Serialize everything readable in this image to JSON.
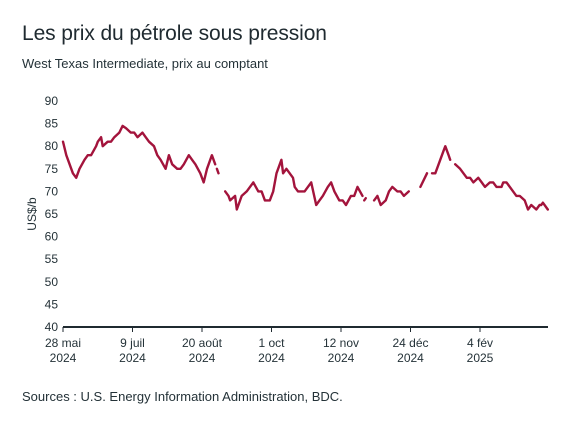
{
  "chart_data": {
    "type": "line",
    "title": "Les prix du pétrole sous pression",
    "subtitle": "West Texas Intermediate, prix au comptant",
    "ylabel": "US$/b",
    "ylim": [
      40,
      90
    ],
    "yticks": [
      40,
      45,
      50,
      55,
      60,
      65,
      70,
      75,
      80,
      85,
      90
    ],
    "xticks": [
      {
        "line1": "28 mai",
        "line2": "2024",
        "date": "2024-05-28"
      },
      {
        "line1": "9 juil",
        "line2": "2024",
        "date": "2024-07-09"
      },
      {
        "line1": "20 août",
        "line2": "2024",
        "date": "2024-08-20"
      },
      {
        "line1": "1 oct",
        "line2": "2024",
        "date": "2024-10-01"
      },
      {
        "line1": "12 nov",
        "line2": "2024",
        "date": "2024-11-12"
      },
      {
        "line1": "24 déc",
        "line2": "2024",
        "date": "2024-12-24"
      },
      {
        "line1": "4 fév",
        "line2": "2025",
        "date": "2025-02-04"
      }
    ],
    "xrange": [
      "2024-05-28",
      "2025-03-17"
    ],
    "line_color": "#a3143c",
    "series": [
      {
        "name": "",
        "segments": [
          [
            [
              "2024-05-28",
              81
            ],
            [
              "2024-05-30",
              78
            ],
            [
              "2024-06-03",
              74
            ],
            [
              "2024-06-05",
              73
            ],
            [
              "2024-06-07",
              75
            ],
            [
              "2024-06-10",
              77
            ],
            [
              "2024-06-12",
              78
            ],
            [
              "2024-06-14",
              78
            ],
            [
              "2024-06-17",
              80
            ],
            [
              "2024-06-18",
              81
            ],
            [
              "2024-06-20",
              82
            ],
            [
              "2024-06-21",
              80
            ],
            [
              "2024-06-24",
              81
            ],
            [
              "2024-06-26",
              81
            ],
            [
              "2024-06-28",
              82
            ],
            [
              "2024-07-01",
              83
            ],
            [
              "2024-07-03",
              84.5
            ],
            [
              "2024-07-05",
              84
            ],
            [
              "2024-07-08",
              83
            ],
            [
              "2024-07-10",
              83
            ],
            [
              "2024-07-12",
              82
            ],
            [
              "2024-07-15",
              83
            ],
            [
              "2024-07-17",
              82
            ],
            [
              "2024-07-19",
              81
            ],
            [
              "2024-07-22",
              80
            ],
            [
              "2024-07-24",
              78
            ],
            [
              "2024-07-26",
              77
            ],
            [
              "2024-07-29",
              75
            ],
            [
              "2024-07-31",
              78
            ],
            [
              "2024-08-02",
              76
            ],
            [
              "2024-08-05",
              75
            ],
            [
              "2024-08-07",
              75
            ],
            [
              "2024-08-09",
              76
            ],
            [
              "2024-08-12",
              78
            ],
            [
              "2024-08-14",
              77
            ],
            [
              "2024-08-16",
              76
            ],
            [
              "2024-08-19",
              74
            ],
            [
              "2024-08-21",
              72
            ],
            [
              "2024-08-23",
              75
            ],
            [
              "2024-08-26",
              78
            ],
            [
              "2024-08-28",
              76
            ]
          ],
          [
            [
              "2024-08-29",
              75
            ],
            [
              "2024-08-30",
              74
            ]
          ],
          [
            [
              "2024-09-03",
              70
            ],
            [
              "2024-09-05",
              69
            ],
            [
              "2024-09-06",
              68
            ],
            [
              "2024-09-09",
              69
            ],
            [
              "2024-09-10",
              66
            ],
            [
              "2024-09-12",
              68
            ],
            [
              "2024-09-13",
              69
            ],
            [
              "2024-09-16",
              70
            ],
            [
              "2024-09-18",
              71
            ],
            [
              "2024-09-20",
              72
            ],
            [
              "2024-09-23",
              70
            ],
            [
              "2024-09-25",
              70
            ],
            [
              "2024-09-27",
              68
            ],
            [
              "2024-09-30",
              68
            ],
            [
              "2024-10-02",
              70
            ],
            [
              "2024-10-04",
              74
            ],
            [
              "2024-10-07",
              77
            ],
            [
              "2024-10-08",
              74
            ],
            [
              "2024-10-10",
              75
            ],
            [
              "2024-10-14",
              73
            ],
            [
              "2024-10-15",
              71
            ],
            [
              "2024-10-17",
              70
            ],
            [
              "2024-10-21",
              70
            ],
            [
              "2024-10-23",
              71
            ],
            [
              "2024-10-25",
              72
            ],
            [
              "2024-10-28",
              67
            ],
            [
              "2024-10-30",
              68
            ],
            [
              "2024-11-01",
              69
            ],
            [
              "2024-11-04",
              71
            ],
            [
              "2024-11-06",
              72
            ],
            [
              "2024-11-08",
              70
            ],
            [
              "2024-11-11",
              68
            ],
            [
              "2024-11-13",
              68
            ],
            [
              "2024-11-15",
              67
            ],
            [
              "2024-11-18",
              69
            ],
            [
              "2024-11-20",
              69
            ],
            [
              "2024-11-22",
              71
            ],
            [
              "2024-11-25",
              69
            ]
          ],
          [
            [
              "2024-11-26",
              68
            ],
            [
              "2024-11-27",
              68.5
            ]
          ],
          [
            [
              "2024-12-02",
              68
            ],
            [
              "2024-12-04",
              69
            ],
            [
              "2024-12-06",
              67
            ],
            [
              "2024-12-09",
              68
            ],
            [
              "2024-12-11",
              70
            ],
            [
              "2024-12-13",
              71
            ],
            [
              "2024-12-16",
              70
            ],
            [
              "2024-12-18",
              70
            ],
            [
              "2024-12-20",
              69
            ],
            [
              "2024-12-23",
              70
            ]
          ],
          [
            [
              "2024-12-30",
              71
            ],
            [
              "2025-01-03",
              74
            ]
          ],
          [
            [
              "2025-01-06",
              74
            ],
            [
              "2025-01-08",
              74
            ],
            [
              "2025-01-10",
              76
            ],
            [
              "2025-01-13",
              79
            ],
            [
              "2025-01-14",
              80
            ],
            [
              "2025-01-16",
              78
            ],
            [
              "2025-01-17",
              77
            ]
          ],
          [
            [
              "2025-01-20",
              76
            ],
            [
              "2025-01-23",
              75
            ],
            [
              "2025-01-27",
              73
            ],
            [
              "2025-01-29",
              73
            ],
            [
              "2025-01-31",
              72
            ],
            [
              "2025-02-03",
              73
            ],
            [
              "2025-02-05",
              72
            ],
            [
              "2025-02-07",
              71
            ],
            [
              "2025-02-10",
              72
            ],
            [
              "2025-02-12",
              72
            ],
            [
              "2025-02-14",
              71
            ],
            [
              "2025-02-17",
              71
            ],
            [
              "2025-02-18",
              72
            ],
            [
              "2025-02-20",
              72
            ],
            [
              "2025-02-24",
              70
            ],
            [
              "2025-02-26",
              69
            ],
            [
              "2025-02-28",
              69
            ],
            [
              "2025-03-03",
              68
            ],
            [
              "2025-03-05",
              66
            ],
            [
              "2025-03-07",
              67
            ],
            [
              "2025-03-10",
              66
            ],
            [
              "2025-03-12",
              67
            ],
            [
              "2025-03-13",
              67
            ],
            [
              "2025-03-14",
              67.5
            ],
            [
              "2025-03-17",
              66
            ]
          ]
        ]
      }
    ]
  },
  "footer": {
    "source": "Sources : U.S. Energy Information Administration, BDC."
  }
}
